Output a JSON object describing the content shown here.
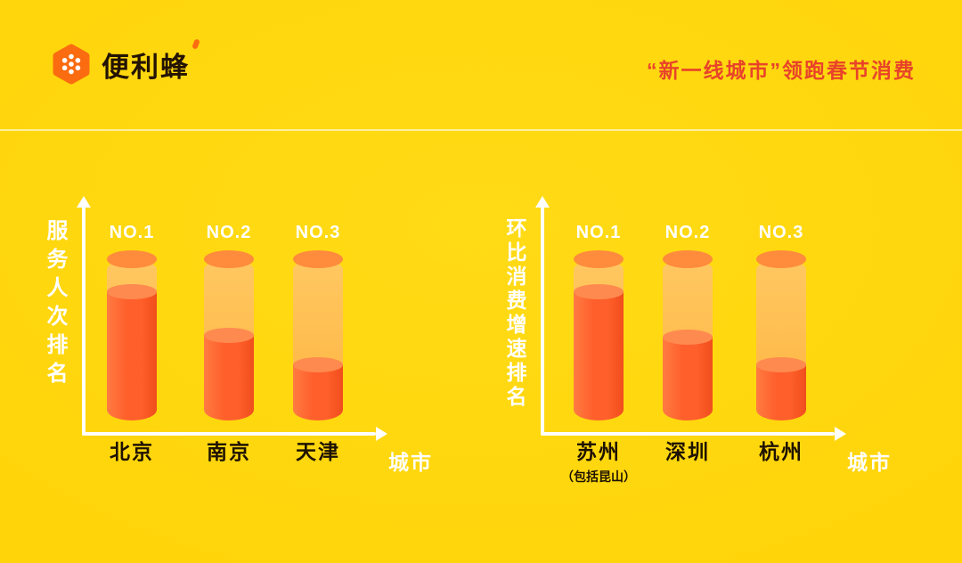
{
  "header": {
    "logo_text": "便利蜂",
    "title": "“新一线城市”领跑春节消费"
  },
  "chart_data": [
    {
      "type": "bar",
      "ylabel": "服务人次排名",
      "xlabel": "城市",
      "categories": [
        "北京",
        "南京",
        "天津"
      ],
      "category_notes": [
        "",
        "",
        ""
      ],
      "ranks": [
        "NO.1",
        "NO.2",
        "NO.3"
      ],
      "values": [
        80,
        53,
        35
      ],
      "ylim": [
        0,
        100
      ],
      "grid": false,
      "legend": "none"
    },
    {
      "type": "bar",
      "ylabel": "环比消费增速排名",
      "xlabel": "城市",
      "categories": [
        "苏州",
        "深圳",
        "杭州"
      ],
      "category_notes": [
        "（包括昆山）",
        "",
        ""
      ],
      "ranks": [
        "NO.1",
        "NO.2",
        "NO.3"
      ],
      "values": [
        80,
        52,
        35
      ],
      "ylim": [
        0,
        100
      ],
      "grid": false,
      "legend": "none"
    }
  ],
  "colors": {
    "background": "#FFD306",
    "title_red": "#E8432A",
    "axis_white": "#FFFFFF",
    "bar_fill": "#FF5F2B",
    "bar_tube": "#FFBE5C",
    "bar_rim": "#FF8B3C",
    "text_dark": "#1E1200",
    "logo_orange": "#FB6C10"
  }
}
